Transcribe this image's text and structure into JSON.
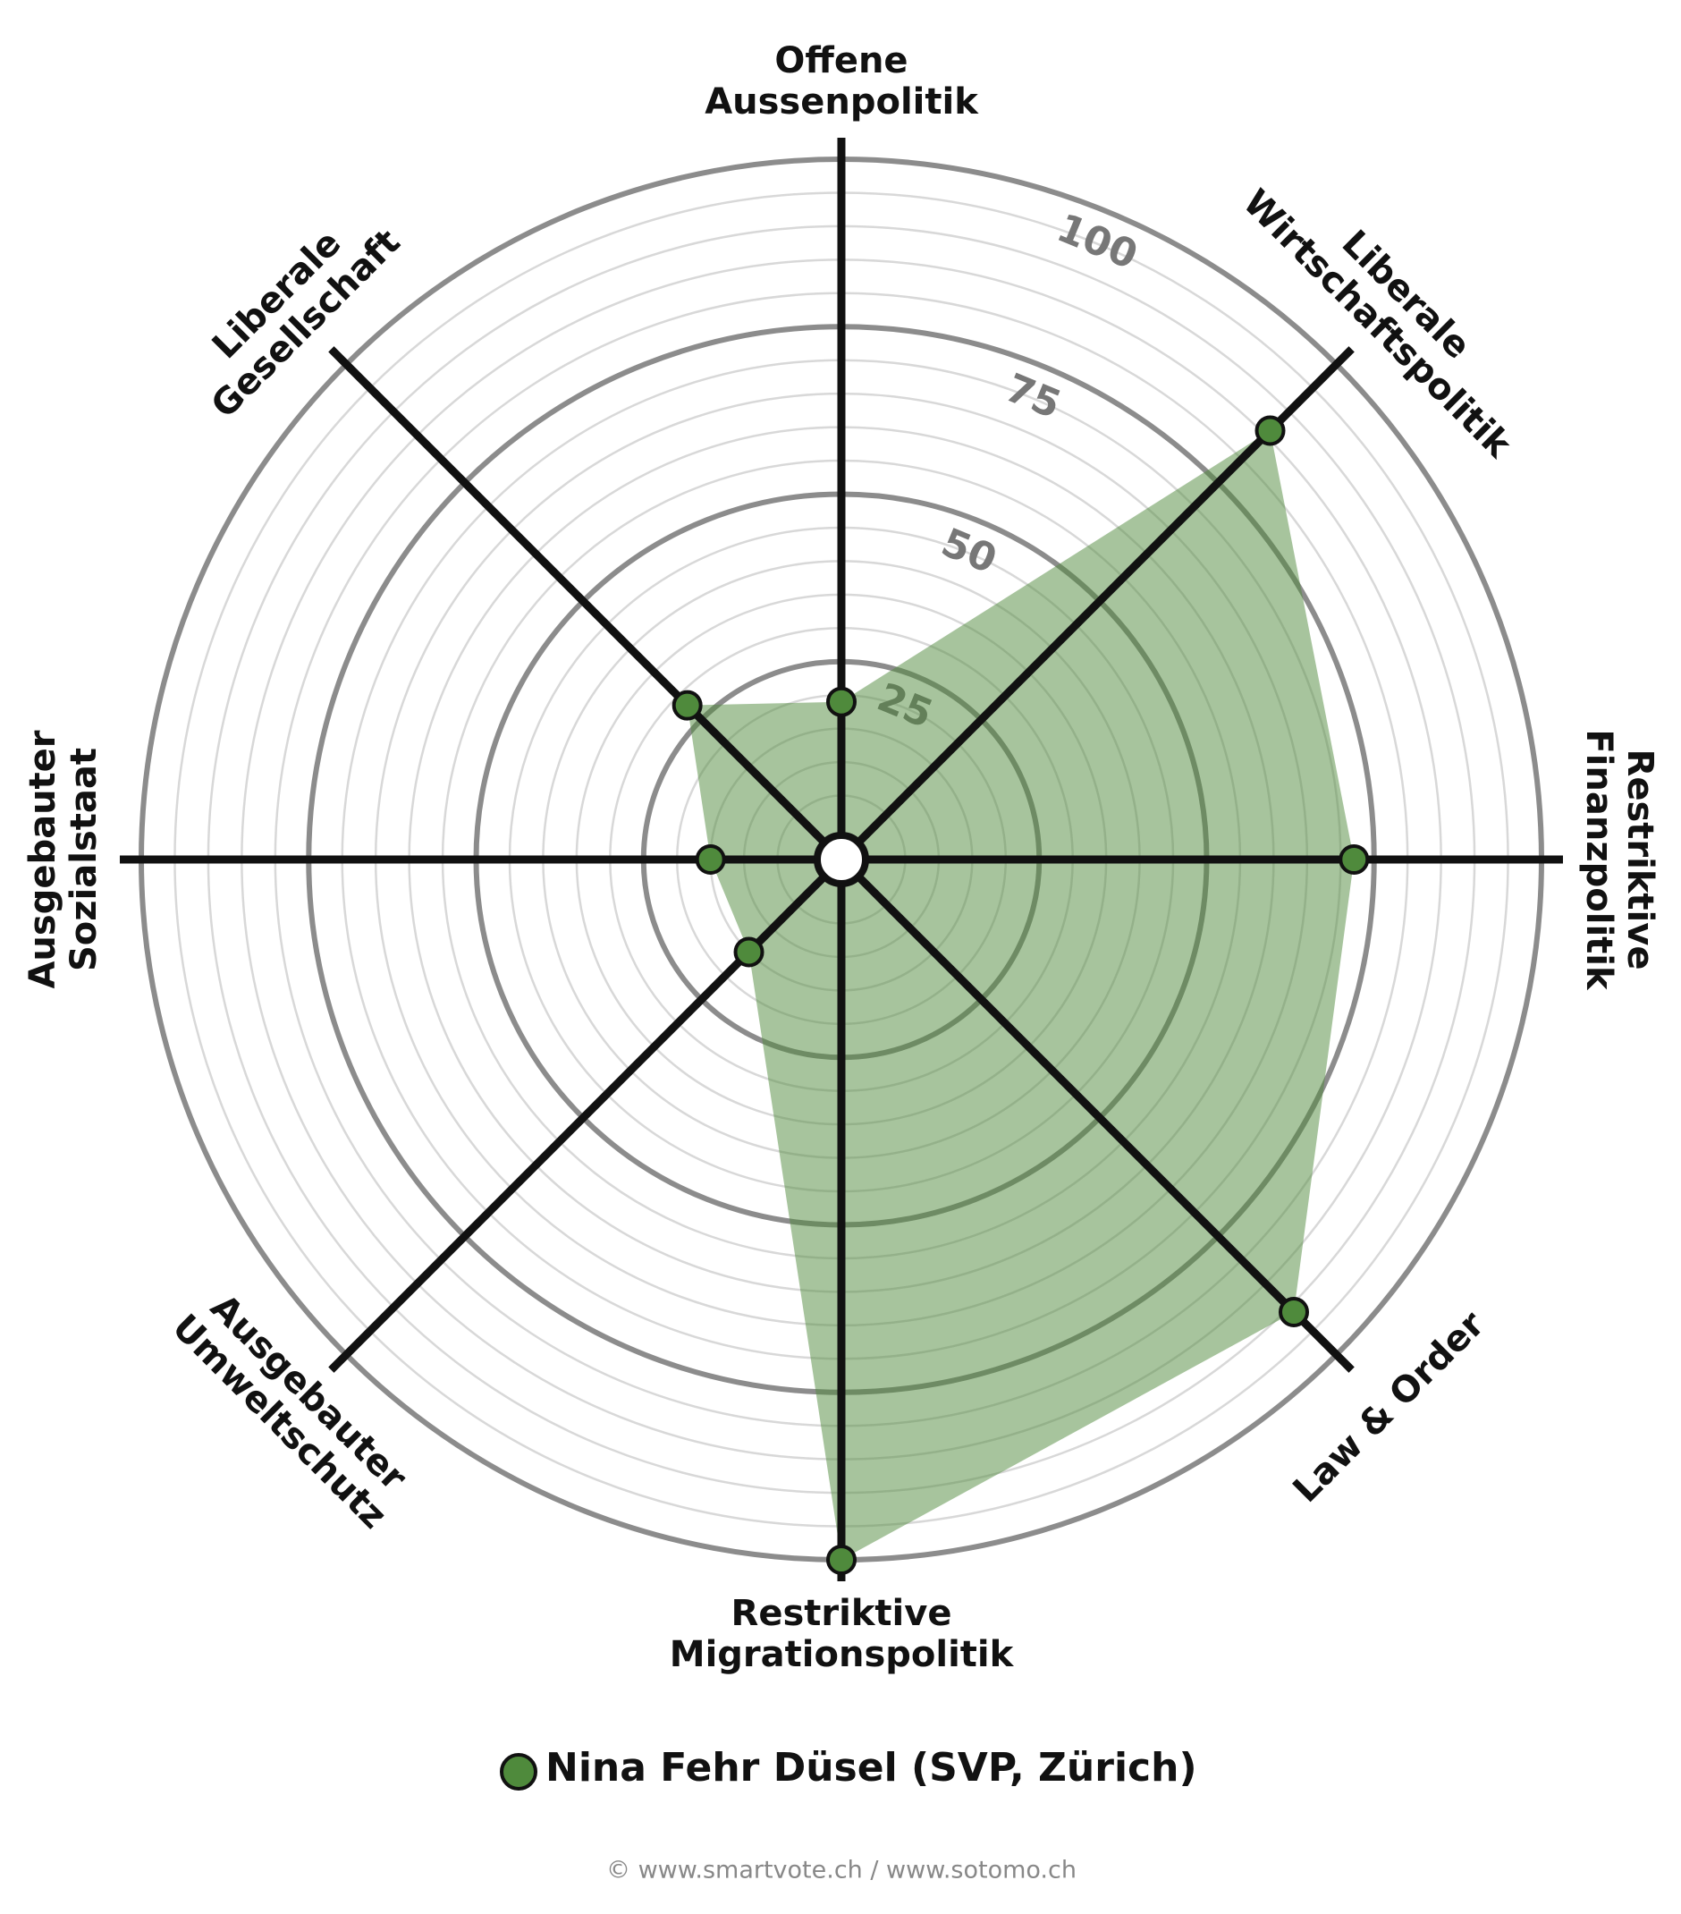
{
  "chart_data": {
    "type": "radar",
    "categories": [
      "Offene\nAussenpolitik",
      "Liberale\nWirtschaftspolitik",
      "Restriktive\nFinanzpolitik",
      "Law & Order",
      "Restriktive\nMigrationspolitik",
      "Ausgebauter\nUmweltschutz",
      "Ausgebauter\nSozialstaat",
      "Liberale\nGesellschaft"
    ],
    "series": [
      {
        "name": "Nina Fehr Düsel (SVP, Zürich)",
        "color": "#4f8a3c",
        "values": [
          19,
          86,
          72,
          91,
          100,
          15,
          15,
          28
        ]
      }
    ],
    "ylim": [
      0,
      100
    ],
    "yticks": [
      25,
      50,
      75,
      100
    ],
    "grid": true,
    "source": "© www.smartvote.ch / www.sotomo.ch"
  }
}
